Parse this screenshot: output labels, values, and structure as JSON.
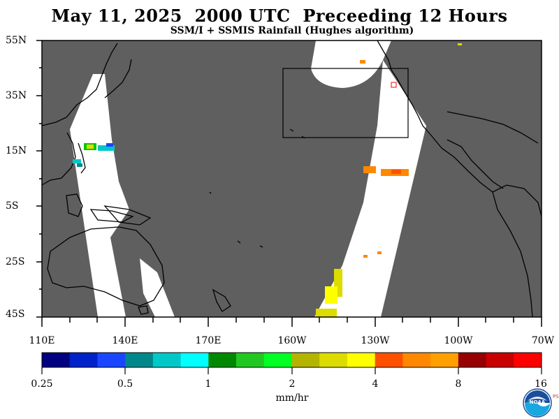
{
  "header": {
    "title": "May 11, 2025  2000 UTC  Preceeding 12 Hours",
    "subtitle": "SSM/I + SSMIS Rainfall (Hughes algorithm)"
  },
  "map": {
    "lat_labels": [
      "55N",
      "35N",
      "15N",
      "5S",
      "25S",
      "45S"
    ],
    "lon_labels": [
      "110E",
      "140E",
      "170E",
      "160W",
      "130W",
      "100W",
      "70W"
    ],
    "land_color": "#5f5f5f",
    "no_data_color": "#5f5f5f",
    "swath_color": "#ffffff"
  },
  "colorbar": {
    "tick_labels": [
      "0.25",
      "0.5",
      "1",
      "2",
      "4",
      "8",
      "16"
    ],
    "units": "mm/hr",
    "colors": [
      "#000080",
      "#0022c8",
      "#1b46ff",
      "#00888a",
      "#00c8c8",
      "#00ffff",
      "#008800",
      "#22c822",
      "#00ff22",
      "#b4b400",
      "#dcdc00",
      "#ffff00",
      "#ff5000",
      "#ff8800",
      "#ffa000",
      "#960000",
      "#c80000",
      "#ff0000"
    ]
  },
  "logo": {
    "name": "NOAA",
    "side_text": "PSL"
  }
}
